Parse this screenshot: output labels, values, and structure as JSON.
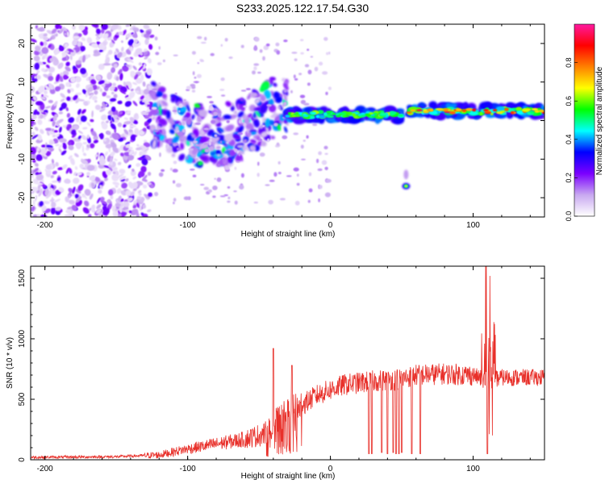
{
  "title": "S233.2025.122.17.54.G30",
  "chart_data": [
    {
      "type": "heatmap",
      "xlabel": "Height of straight line (km)",
      "ylabel": "Frequency (Hz)",
      "xlim": [
        -210,
        150
      ],
      "ylim": [
        -25,
        25
      ],
      "xticks": [
        -200,
        -100,
        0,
        100
      ],
      "yticks": [
        -20,
        -10,
        0,
        10,
        20
      ],
      "colorbar": {
        "label": "Normalized spectral amplitude",
        "range": [
          0,
          1
        ],
        "ticks": [
          "0.0",
          "0.2",
          "0.4",
          "0.6",
          "0.8"
        ],
        "tick_values": [
          0,
          0.2,
          0.4,
          0.6,
          0.8
        ],
        "stops": [
          "#ffffff",
          "#c8a8f0",
          "#7b00ff",
          "#0000ff",
          "#00ffff",
          "#00ff00",
          "#ffff00",
          "#ff8000",
          "#ff0000",
          "#ff1aa0"
        ]
      },
      "features": [
        {
          "name": "noise-region",
          "x_range": [
            -210,
            -125
          ],
          "y_range": [
            -25,
            25
          ],
          "level": 0.15
        },
        {
          "name": "scattered-blobs",
          "x_range": [
            -125,
            -30
          ],
          "y_range": [
            -12,
            10
          ],
          "level": 0.3
        },
        {
          "name": "main-band-1",
          "x_range": [
            -30,
            50
          ],
          "y": 1.5,
          "level": 0.6
        },
        {
          "name": "main-band-2",
          "x_range": [
            55,
            150
          ],
          "y": 2.5,
          "level": 0.9
        },
        {
          "name": "isolated-spot",
          "x": 53,
          "y": -17,
          "level": 0.4
        }
      ]
    },
    {
      "type": "line",
      "xlabel": "Height of straight line (km)",
      "ylabel": "SNR (10 * v/v)",
      "xlim": [
        -210,
        150
      ],
      "ylim": [
        0,
        1600
      ],
      "xticks": [
        -200,
        -100,
        0,
        100
      ],
      "yticks": [
        0,
        500,
        1000,
        1500
      ],
      "color": "#e8302a",
      "profile": [
        [
          -210,
          20
        ],
        [
          -150,
          25
        ],
        [
          -120,
          40
        ],
        [
          -100,
          90
        ],
        [
          -80,
          130
        ],
        [
          -60,
          170
        ],
        [
          -45,
          220
        ],
        [
          -38,
          330
        ],
        [
          -30,
          380
        ],
        [
          -20,
          450
        ],
        [
          -10,
          530
        ],
        [
          0,
          580
        ],
        [
          10,
          620
        ],
        [
          30,
          650
        ],
        [
          50,
          670
        ],
        [
          60,
          700
        ],
        [
          80,
          710
        ],
        [
          100,
          700
        ],
        [
          110,
          650
        ],
        [
          120,
          680
        ],
        [
          150,
          680
        ]
      ],
      "spikes": [
        {
          "x": -40,
          "y": 920
        },
        {
          "x": -27,
          "y": 780
        },
        {
          "x": 109,
          "y": 1600
        },
        {
          "x": 112,
          "y": 1520
        },
        {
          "x": 115,
          "y": 1100
        }
      ],
      "dips": [
        {
          "x": 27,
          "y": 50
        },
        {
          "x": 29,
          "y": 50
        },
        {
          "x": 36,
          "y": 60
        },
        {
          "x": 40,
          "y": 50
        },
        {
          "x": 44,
          "y": 60
        },
        {
          "x": 46,
          "y": 50
        },
        {
          "x": 48,
          "y": 50
        },
        {
          "x": 50,
          "y": 60
        },
        {
          "x": 57,
          "y": 50
        },
        {
          "x": 63,
          "y": 50
        },
        {
          "x": 110,
          "y": 50
        }
      ]
    }
  ]
}
